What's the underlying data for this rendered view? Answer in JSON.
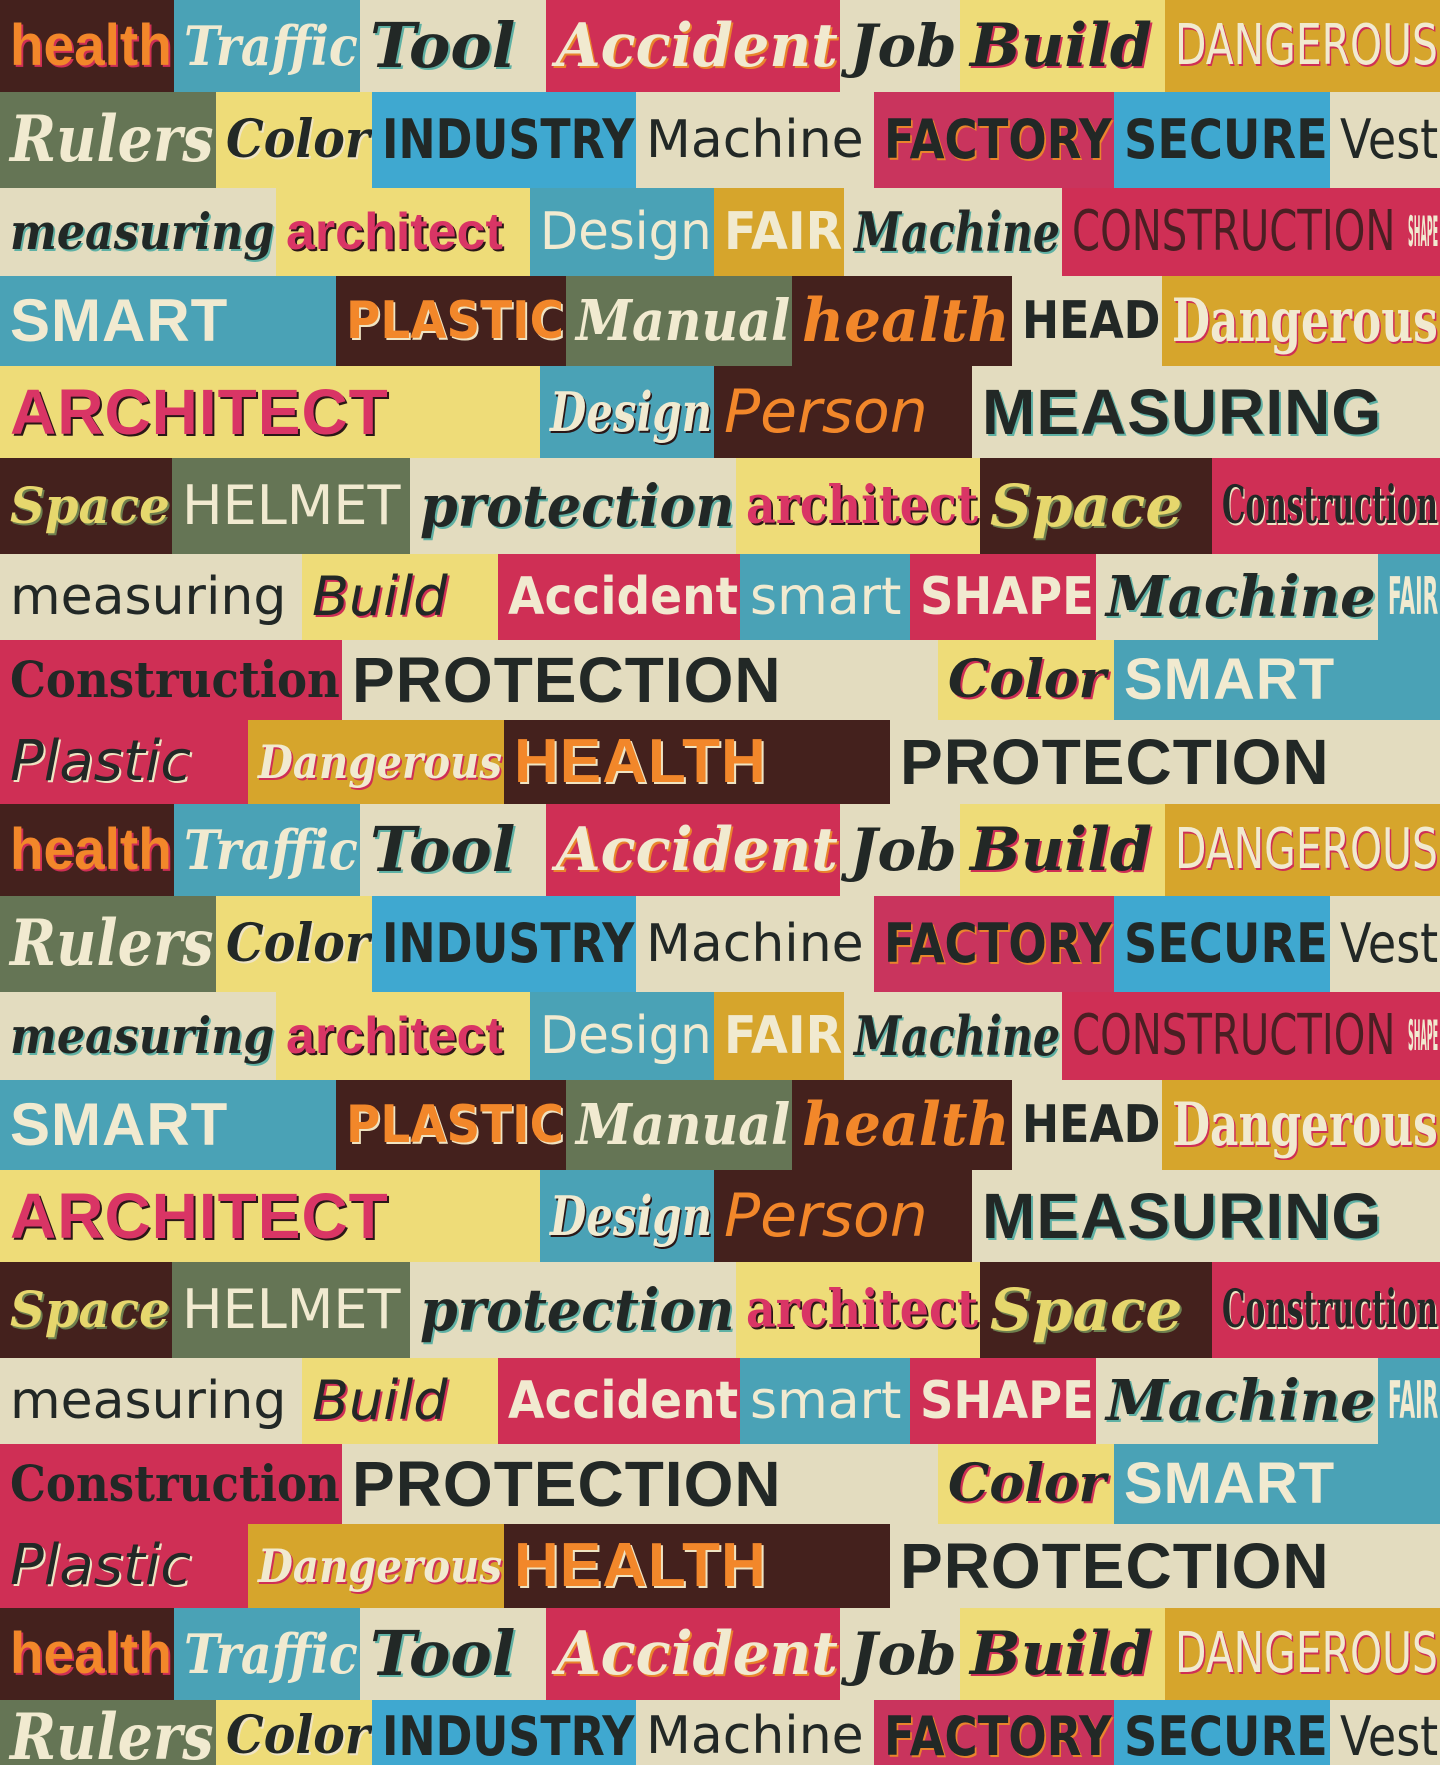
{
  "rows": [
    [
      "health",
      "Traffic",
      "Tool",
      "Accident",
      "Job",
      "Build",
      "DANGEROUS"
    ],
    [
      "Rulers",
      "Color",
      "INDUSTRY",
      "Machine",
      "FACTORY",
      "SECURE",
      "Vest"
    ],
    [
      "measuring",
      "architect",
      "Design",
      "FAIR",
      "Machine",
      "CONSTRUCTION",
      "SHAPE"
    ],
    [
      "SMART",
      "PLASTIC",
      "Manual",
      "health",
      "HEAD",
      "Dangerous"
    ],
    [
      "ARCHITECT",
      "Design",
      "Person",
      "MEASURING"
    ],
    [
      "Space",
      "HELMET",
      "protection",
      "architect",
      "Space",
      "Construction"
    ],
    [
      "measuring",
      "Build",
      "Accident",
      "smart",
      "SHAPE",
      "Machine",
      "FAIR"
    ],
    [
      "Construction",
      "PROTECTION",
      "Color",
      "SMART"
    ],
    [
      "Plastic",
      "Dangerous",
      "HEALTH",
      "PROTECTION"
    ],
    [
      "health",
      "Traffic",
      "Tool",
      "Accident",
      "Job",
      "Build",
      "DANGEROUS"
    ],
    [
      "Rulers",
      "Color",
      "INDUSTRY",
      "Machine",
      "FACTORY",
      "SECURE",
      "Vest"
    ],
    [
      "measuring",
      "architect",
      "Design",
      "FAIR",
      "Machine",
      "CONSTRUCTION",
      "SHAPE"
    ],
    [
      "SMART",
      "PLASTIC",
      "Manual",
      "health",
      "HEAD",
      "Dangerous"
    ],
    [
      "ARCHITECT",
      "Design",
      "Person",
      "MEASURING"
    ],
    [
      "Space",
      "HELMET",
      "protection",
      "architect",
      "Space",
      "Construction"
    ],
    [
      "measuring",
      "Build",
      "Accident",
      "smart",
      "SHAPE",
      "Machine",
      "FAIR"
    ],
    [
      "Construction",
      "PROTECTION",
      "Color",
      "SMART"
    ],
    [
      "Plastic",
      "Dangerous",
      "HEALTH",
      "PROTECTION"
    ],
    [
      "health",
      "Traffic",
      "Tool",
      "Accident",
      "Job",
      "Build",
      "DANGEROUS"
    ],
    [
      "Rulers",
      "Color",
      "INDUSTRY",
      "Machine",
      "FACTORY",
      "SECURE",
      "Vest"
    ]
  ]
}
